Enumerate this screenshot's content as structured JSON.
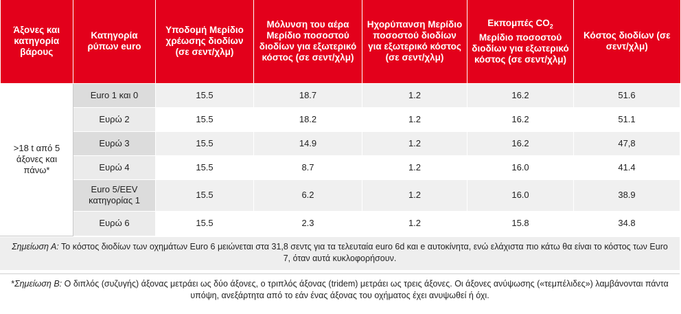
{
  "table": {
    "headers": [
      "Άξονες και κατηγορία βάρους",
      "Κατηγορία ρύπων euro",
      "Υποδομή Μερίδιο χρέωσης διοδίων (σε σεντ/χλμ)",
      "Μόλυνση του αέρα Μερίδιο ποσοστού διοδίων για εξωτερικό κόστος (σε σεντ/χλμ)",
      "Ηχορύπανση Μερίδιο ποσοστού διοδίων για εξωτερικό κόστος (σε σεντ/χλμ)",
      "Εκπομπές CO",
      "Κόστος διοδίων (σε σεντ/χλμ)"
    ],
    "co2_subscript": "2",
    "co2_rest": "Μερίδιο ποσοστού διοδίων για εξωτερικό κόστος (σε σεντ/χλμ)",
    "axles_group": ">18 t από 5 άξονες και πάνω*",
    "rows": [
      {
        "category": "Euro 1 και 0",
        "infra": "15.5",
        "air": "18.7",
        "noise": "1.2",
        "co2": "16.2",
        "total": "51.6"
      },
      {
        "category": "Ευρώ 2",
        "infra": "15.5",
        "air": "18.2",
        "noise": "1.2",
        "co2": "16.2",
        "total": "51.1"
      },
      {
        "category": "Ευρώ 3",
        "infra": "15.5",
        "air": "14.9",
        "noise": "1.2",
        "co2": "16.2",
        "total": "47,8"
      },
      {
        "category": "Ευρώ 4",
        "infra": "15.5",
        "air": "8.7",
        "noise": "1.2",
        "co2": "16.0",
        "total": "41.4"
      },
      {
        "category": "Euro 5/EEV κατηγορίας 1",
        "infra": "15.5",
        "air": "6.2",
        "noise": "1.2",
        "co2": "16.0",
        "total": "38.9"
      },
      {
        "category": "Ευρώ 6",
        "infra": "15.5",
        "air": "2.3",
        "noise": "1.2",
        "co2": "15.8",
        "total": "34.8"
      }
    ]
  },
  "notes": {
    "a_label": "Σημείωση Α:",
    "a_text": " Το κόστος διοδίων των οχημάτων Euro 6 μειώνεται στα 31,8 σεντς για τα τελευταία euro 6d και e αυτοκίνητα, ενώ ελάχιστα πιο κάτω θα είναι το κόστος των Euro 7, όταν αυτά κυκλοφορήσουν.",
    "b_prefix": "*",
    "b_label": "Σημείωση Β:",
    "b_text": " Ο διπλός (συζυγής) άξονας μετράει ως δύο άξονες, ο τριπλός άξονας (tridem) μετράει ως τρεις άξονες. Οι άξονες ανύψωσης («τεμπέλιδες») λαμβάνονται πάντα υπόψη, ανεξάρτητα από το εάν ένας άξονας του οχήματος έχει ανυψωθεί ή όχι."
  }
}
